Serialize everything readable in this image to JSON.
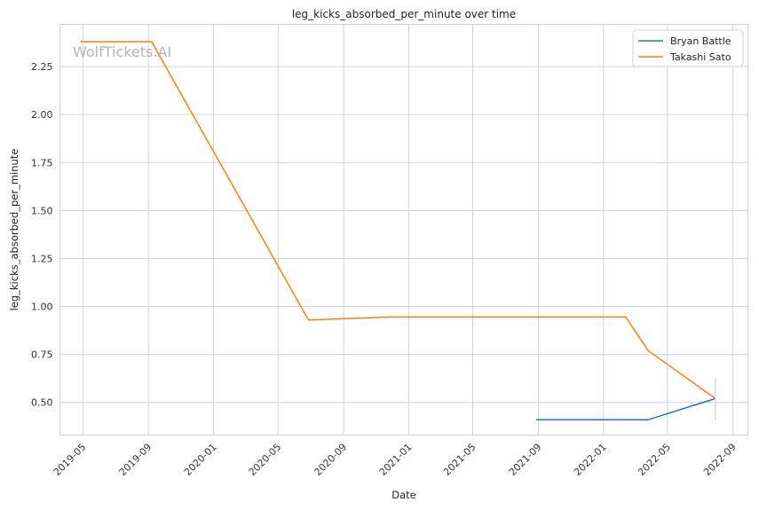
{
  "watermark": "WolfTickets.AI",
  "chart_data": {
    "type": "line",
    "title": "leg_kicks_absorbed_per_minute over time",
    "xlabel": "Date",
    "ylabel": "leg_kicks_absorbed_per_minute",
    "xlim": [
      "2019-03-19",
      "2022-09-29"
    ],
    "ylim": [
      0.33,
      2.47
    ],
    "x_ticks": [
      "2019-05",
      "2019-09",
      "2020-01",
      "2020-05",
      "2020-09",
      "2021-01",
      "2021-05",
      "2021-09",
      "2022-01",
      "2022-05",
      "2022-09"
    ],
    "y_ticks": [
      "0.50",
      "0.75",
      "1.00",
      "1.25",
      "1.50",
      "1.75",
      "2.00",
      "2.25"
    ],
    "grid": true,
    "legend_position": "top-right",
    "series": [
      {
        "name": "Bryan Battle",
        "color": "#1f77b4",
        "x": [
          "2021-08-28",
          "2022-03-26",
          "2022-07-30"
        ],
        "y": [
          0.41,
          0.41,
          0.52
        ]
      },
      {
        "name": "Takashi Sato",
        "color": "#ff7f0e",
        "x": [
          "2019-04-27",
          "2019-09-07",
          "2020-06-27",
          "2020-11-28",
          "2022-02-12",
          "2022-03-26",
          "2022-07-30"
        ],
        "y": [
          2.38,
          2.38,
          0.93,
          0.945,
          0.945,
          0.77,
          0.52
        ]
      }
    ],
    "error_bar": {
      "x": "2022-07-30",
      "low": 0.41,
      "high": 0.63
    }
  }
}
